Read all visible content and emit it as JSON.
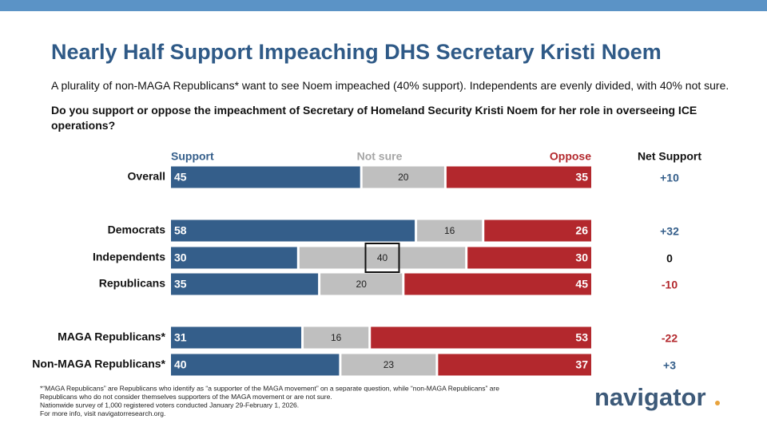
{
  "chart_data": {
    "type": "stacked-bar-horizontal",
    "title": "Nearly Half Support Impeaching DHS Secretary Kristi Noem",
    "subtitle": "A plurality of non-MAGA Republicans* want to see Noem impeached (40% support). Independents are evenly divided, with 40% not sure.",
    "question": "Do you support or oppose the impeachment of Secretary of Homeland Security Kristi Noem for her role in overseeing ICE operations?",
    "categories": [
      "Overall",
      "Democrats",
      "Independents",
      "Republicans",
      "MAGA Republicans*",
      "Non-MAGA Republicans*"
    ],
    "series": [
      {
        "name": "Support",
        "color": "#345e8a",
        "values": [
          45,
          58,
          30,
          35,
          31,
          40
        ]
      },
      {
        "name": "Not sure",
        "color": "#bfbfbf",
        "values": [
          20,
          16,
          40,
          20,
          16,
          23
        ]
      },
      {
        "name": "Oppose",
        "color": "#b3282d",
        "values": [
          35,
          26,
          30,
          45,
          53,
          37
        ]
      }
    ],
    "net": {
      "name": "Net Support",
      "values": [
        10,
        32,
        0,
        -10,
        -22,
        3
      ],
      "value_labels": [
        "+10",
        "+32",
        "0",
        "-10",
        "-22",
        "+3"
      ]
    },
    "highlight": {
      "series": 1,
      "index": 2
    },
    "xlim": [
      0,
      100
    ],
    "footnote": [
      "*“MAGA Republicans” are Republicans who identify as “a supporter of the MAGA movement” on a separate question, while “non-MAGA Republicans” are",
      "Republicans who do not consider themselves supporters of the MAGA movement or are not sure.",
      "Nationwide survey of 1,000 registered voters conducted January 29-February 1, 2026.",
      "For more info, visit navigatorresearch.org."
    ],
    "logo": "navigator"
  }
}
